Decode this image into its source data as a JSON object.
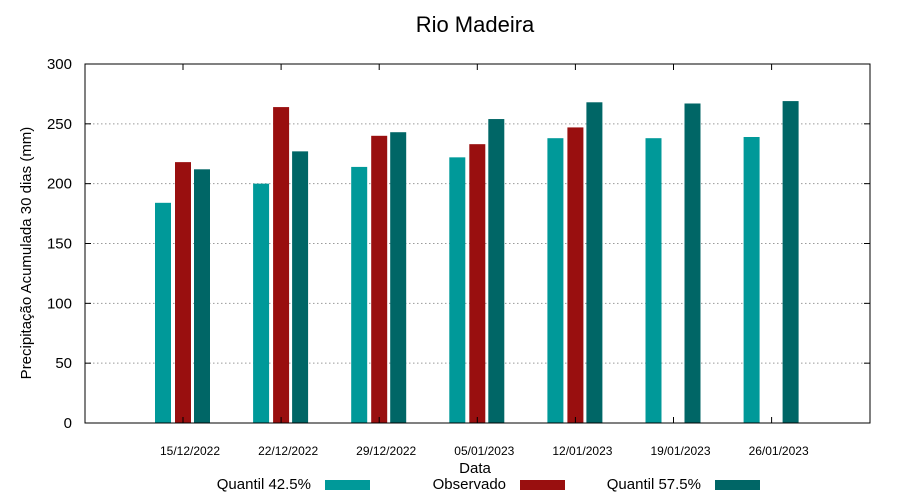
{
  "chart_data": {
    "type": "bar",
    "title": "Rio Madeira",
    "xlabel": "Data",
    "ylabel": "Precipitação Acumulada 30 dias (mm)",
    "ylim": [
      0,
      300
    ],
    "yticks": [
      0,
      50,
      100,
      150,
      200,
      250,
      300
    ],
    "grid": true,
    "legend_position": "bottom",
    "categories": [
      "15/12/2022",
      "22/12/2022",
      "29/12/2022",
      "05/01/2023",
      "12/01/2023",
      "19/01/2023",
      "26/01/2023"
    ],
    "series": [
      {
        "name": "Quantil 42.5%",
        "color": "#009999",
        "values": [
          184,
          200,
          214,
          222,
          238,
          238,
          239
        ]
      },
      {
        "name": "Observado",
        "color": "#990f0f",
        "values": [
          218,
          264,
          240,
          233,
          247,
          null,
          null
        ]
      },
      {
        "name": "Quantil 57.5%",
        "color": "#006666",
        "values": [
          212,
          227,
          243,
          254,
          268,
          267,
          269
        ]
      }
    ]
  }
}
